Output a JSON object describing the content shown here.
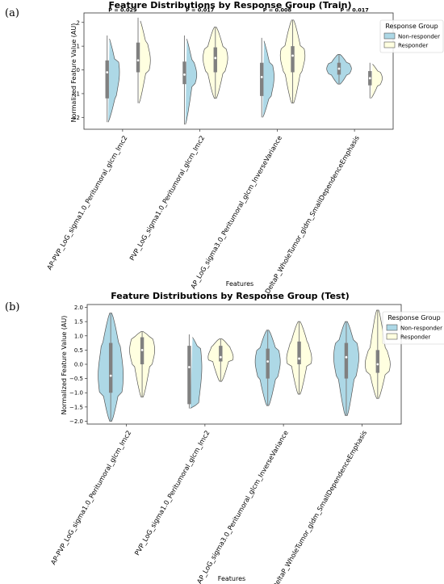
{
  "colors": {
    "non_responder": "#add8e6",
    "responder": "#ffffe0",
    "box": "#808080",
    "median": "#ffffff"
  },
  "chart_data": [
    {
      "type": "violin",
      "panel_label": "(a)",
      "title": "Feature Distributions by Response Group (Train)",
      "xlabel": "Features",
      "ylabel": "Normalized Feature Value (AU)",
      "ylim": [
        -2.5,
        2.4
      ],
      "yticks": [
        "−2",
        "−1",
        "0",
        "1",
        "2"
      ],
      "ytick_values": [
        -2,
        -1,
        0,
        1,
        2
      ],
      "grid": false,
      "legend": {
        "title": "Response Group",
        "placement": "top-right",
        "entries": [
          "Non-responder",
          "Responder"
        ]
      },
      "categories": [
        "AP-PVP_LoG_sigma1.0_Peritumoral_glcm_Imc2",
        "PVP_LoG_sigma1.0_Peritumoral_glcm_Imc2",
        "AP_LoG_sigma3.0_Peritumoral_glcm_InverseVariance",
        "DeltaP_WholeTumor_gldm_SmallDependenceEmphasis"
      ],
      "p_values": [
        "P = 0.029",
        "P = 0.017",
        "P = 0.008",
        "P = 0.017"
      ],
      "series": [
        {
          "name": "Non-responder",
          "min": [
            -2.2,
            -2.3,
            -2.0,
            -0.6
          ],
          "q1": [
            -1.2,
            -0.6,
            -1.1,
            -0.2
          ],
          "median": [
            -0.1,
            -0.2,
            -0.3,
            0.05
          ],
          "q3": [
            0.4,
            0.35,
            0.3,
            0.3
          ],
          "max": [
            1.45,
            1.45,
            1.35,
            0.65
          ]
        },
        {
          "name": "Responder",
          "min": [
            -1.4,
            -1.2,
            -1.4,
            -1.2
          ],
          "q1": [
            -0.1,
            -0.1,
            -0.1,
            -0.65
          ],
          "median": [
            0.4,
            0.5,
            0.6,
            -0.35
          ],
          "q3": [
            1.15,
            0.95,
            1.0,
            -0.05
          ],
          "max": [
            2.2,
            1.8,
            2.1,
            0.3
          ]
        }
      ]
    },
    {
      "type": "violin",
      "panel_label": "(b)",
      "title": "Feature Distributions by Response Group (Test)",
      "xlabel": "Features",
      "ylabel": "Normalized Feature Value (AU)",
      "ylim": [
        -2.1,
        2.1
      ],
      "yticks": [
        "−2.0",
        "−1.5",
        "−1.0",
        "−0.5",
        "0.0",
        "0.5",
        "1.0",
        "1.5",
        "2.0"
      ],
      "ytick_values": [
        -2.0,
        -1.5,
        -1.0,
        -0.5,
        0.0,
        0.5,
        1.0,
        1.5,
        2.0
      ],
      "grid": false,
      "legend": {
        "title": "Response Group",
        "placement": "top-right",
        "entries": [
          "Non-responder",
          "Responder"
        ]
      },
      "categories": [
        "AP-PVP_LoG_sigma1.0_Peritumoral_glcm_Imc2",
        "PVP_LoG_sigma1.0_Peritumoral_glcm_Imc2",
        "AP_LoG_sigma3.0_Peritumoral_glcm_InverseVariance",
        "DeltaP_WholeTumor_gldm_SmallDependenceEmphasis"
      ],
      "series": [
        {
          "name": "Non-responder",
          "min": [
            -2.0,
            -1.55,
            -1.45,
            -1.8
          ],
          "q1": [
            -1.0,
            -1.4,
            -0.5,
            -0.5
          ],
          "median": [
            -0.4,
            -0.1,
            0.1,
            0.25
          ],
          "q3": [
            0.75,
            0.65,
            0.55,
            0.75
          ],
          "max": [
            1.8,
            1.05,
            1.2,
            1.5
          ]
        },
        {
          "name": "Responder",
          "min": [
            -1.15,
            -0.6,
            -1.05,
            -1.2
          ],
          "q1": [
            0.0,
            0.1,
            0.0,
            -0.3
          ],
          "median": [
            0.5,
            0.25,
            0.2,
            0.0
          ],
          "q3": [
            0.95,
            0.65,
            0.8,
            0.5
          ],
          "max": [
            1.15,
            0.9,
            1.5,
            1.9
          ]
        }
      ]
    }
  ]
}
